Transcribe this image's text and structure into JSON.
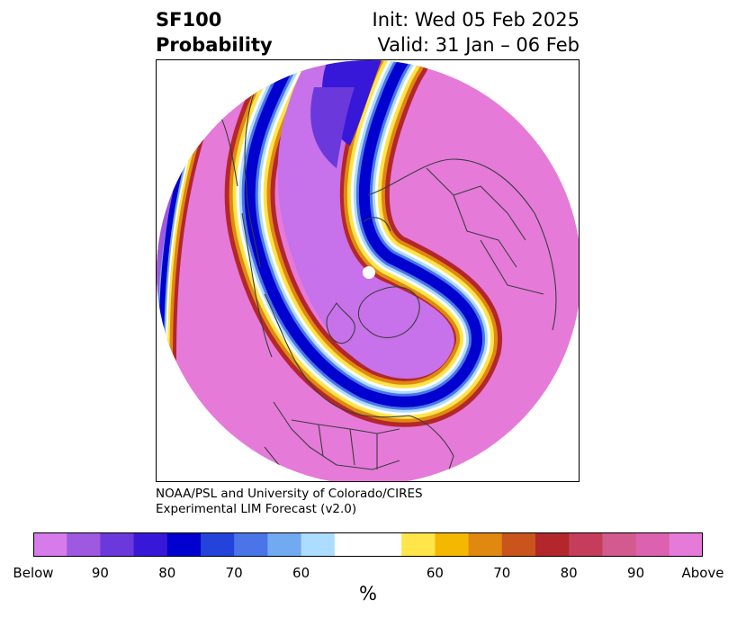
{
  "header": {
    "product": "SF100",
    "subtitle": "Probability",
    "init": "Init: Wed 05 Feb 2025",
    "valid": "Valid: 31 Jan – 06 Feb"
  },
  "credit": {
    "line1": "NOAA/PSL and University of Colorado/CIRES",
    "line2": "Experimental LIM Forecast (v2.0)"
  },
  "colorbar": {
    "units": "%",
    "colors": [
      "#d57bea",
      "#9f59e0",
      "#6b38db",
      "#3818d8",
      "#0000cf",
      "#2343db",
      "#4b74e8",
      "#72aaf2",
      "#acdcff",
      "#ffffff",
      "#ffffff",
      "#ffe44a",
      "#f5b800",
      "#e0880f",
      "#c9541c",
      "#b3262b",
      "#c53d5a",
      "#d25a8f",
      "#dc62b0",
      "#e57ad9"
    ],
    "tick_labels": [
      "Below",
      "90",
      "80",
      "70",
      "60",
      "60",
      "70",
      "80",
      "90",
      "Above"
    ]
  },
  "map": {
    "projection": "north-polar-stereographic",
    "field_colors": {
      "above": "#e57ad9",
      "below": "#c771ea",
      "below_mid": "#9f59e0",
      "blue_core": "#0000cf",
      "blue_light": "#72aaf2",
      "neutral": "#ffffff",
      "yellow": "#ffe44a",
      "orange": "#e0880f",
      "red": "#b3262b",
      "border": "#3c3c3c"
    }
  }
}
